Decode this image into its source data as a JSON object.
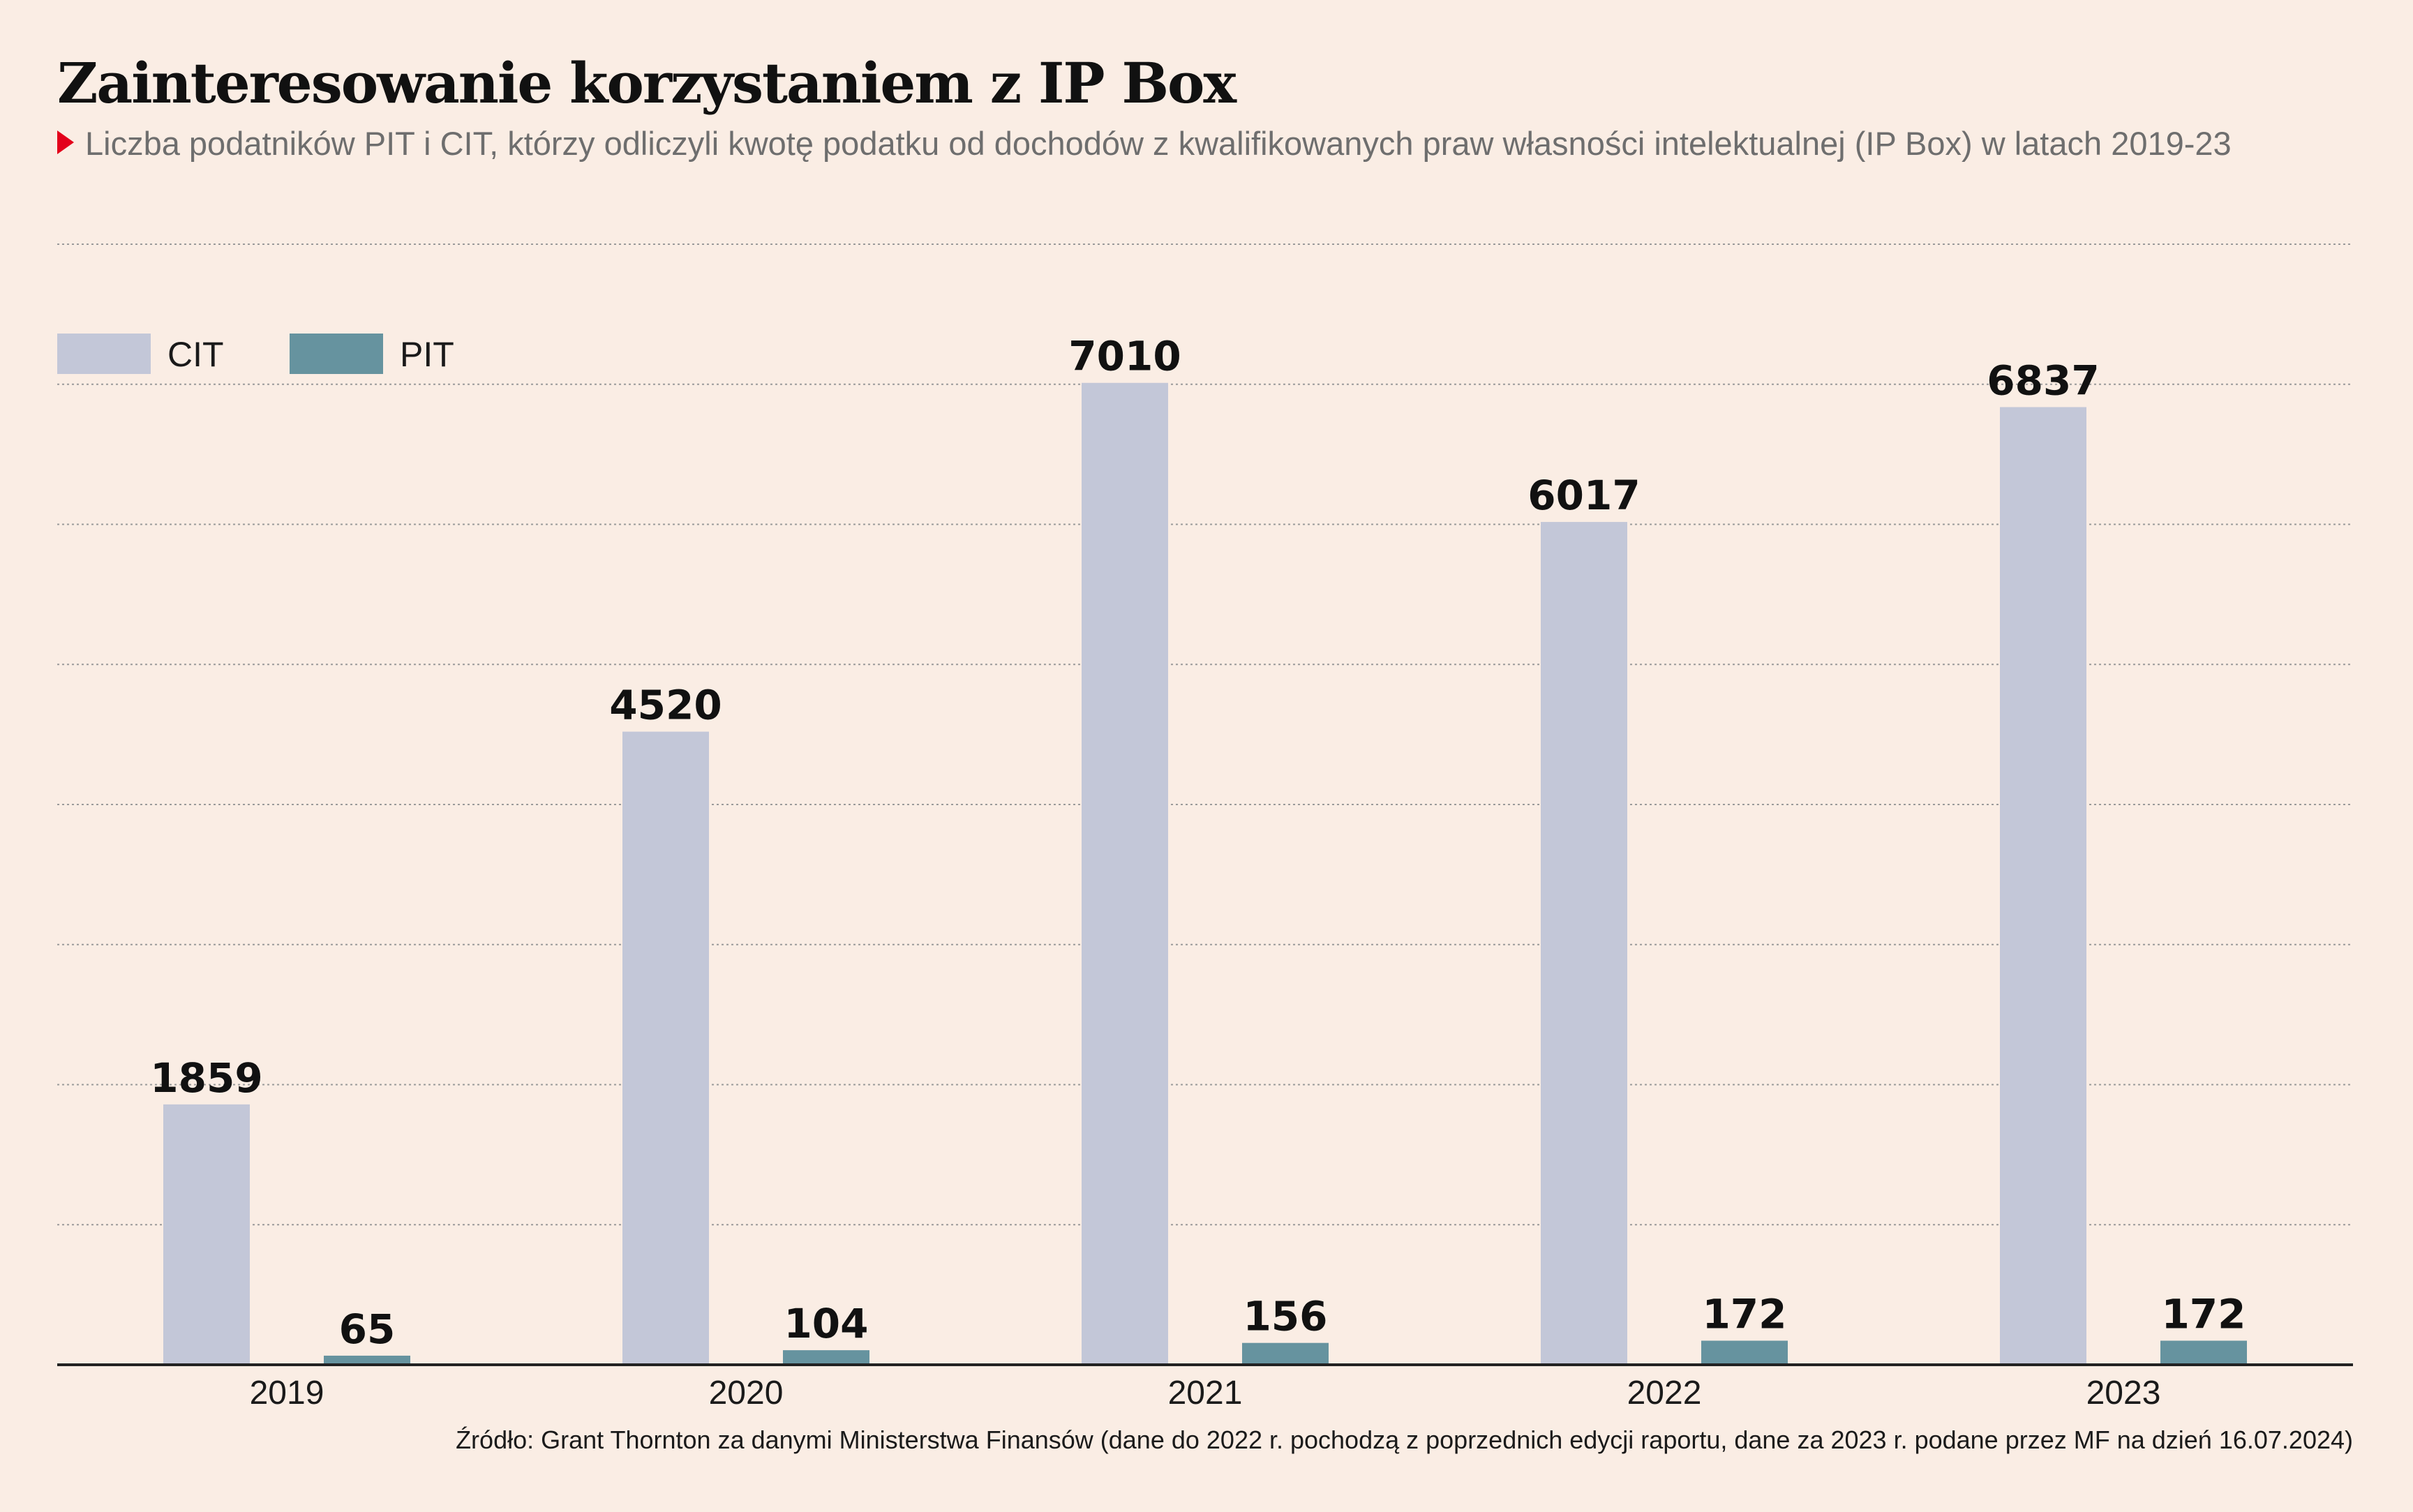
{
  "header": {
    "title": "Zainteresowanie korzystaniem z IP Box",
    "subtitle": "Liczba podatników PIT i CIT, którzy odliczyli kwotę podatku od dochodów z kwalifikowanych praw własności intelektualnej (IP Box) w latach 2019-23"
  },
  "footer": {
    "source": "Źródło: Grant Thornton za danymi Ministerstwa Finansów (dane do 2022 r. pochodzą z poprzednich edycji raportu, dane za 2023 r. podane przez MF na dzień 16.07.2024)"
  },
  "colors": {
    "background": "#faede4",
    "cit": "#c3c7d8",
    "pit": "#66939f",
    "accent": "#e3001b",
    "axis": "#222222",
    "grid": "#9a9a9a"
  },
  "chart_data": {
    "type": "bar",
    "categories": [
      "2019",
      "2020",
      "2021",
      "2022",
      "2023"
    ],
    "series": [
      {
        "name": "CIT",
        "values": [
          1859,
          4520,
          7010,
          6017,
          6837
        ]
      },
      {
        "name": "PIT",
        "values": [
          65,
          104,
          156,
          172,
          172
        ]
      }
    ],
    "ylim": [
      0,
      8000
    ],
    "grid": true,
    "legend": "top-left",
    "data_labels": true
  }
}
